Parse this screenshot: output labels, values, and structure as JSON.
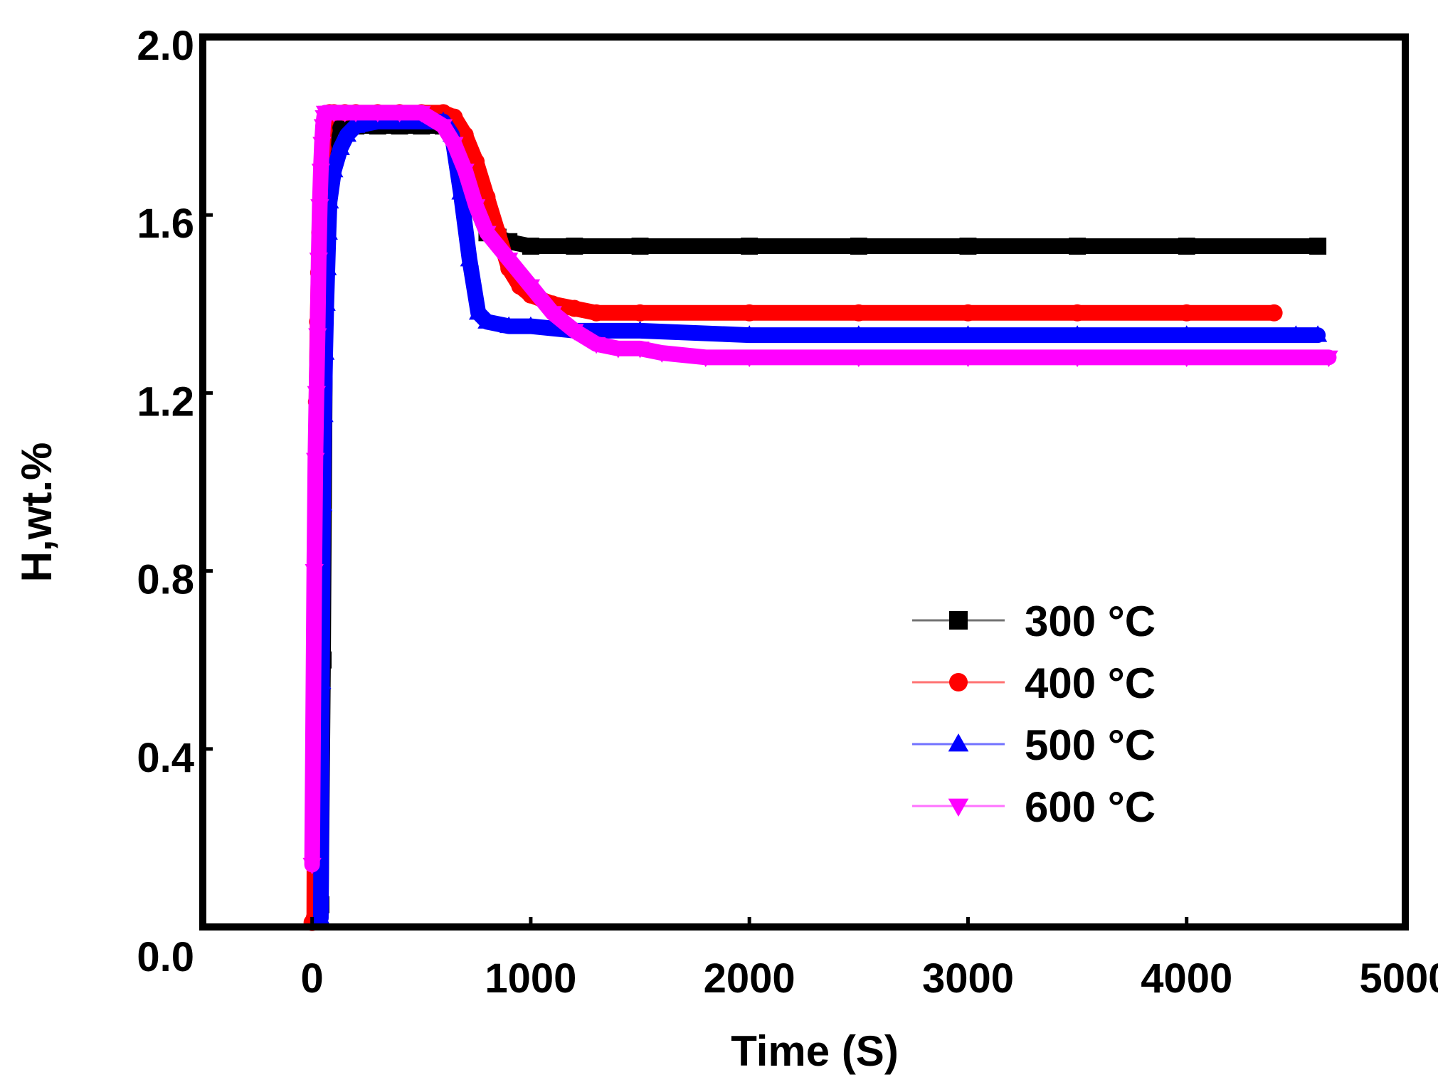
{
  "chart_data": {
    "type": "scatter",
    "title": "",
    "xlabel": "Time (S)",
    "ylabel": "H,wt.%",
    "xlim": [
      -500,
      5000
    ],
    "ylim": [
      0.0,
      2.0
    ],
    "xticks": [
      0,
      1000,
      2000,
      3000,
      4000,
      5000
    ],
    "xtick_labels": [
      "0",
      "1000",
      "2000",
      "3000",
      "4000",
      "5000"
    ],
    "yticks": [
      0.0,
      0.4,
      0.8,
      1.2,
      1.6,
      2.0
    ],
    "ytick_labels": [
      "0.0",
      "0.4",
      "0.8",
      "1.2",
      "1.6",
      "2.0"
    ],
    "grid": false,
    "legend_position": "center-right",
    "series": [
      {
        "name": "300 °C",
        "color": "#000000",
        "marker": "square",
        "x": [
          20,
          30,
          40,
          50,
          60,
          70,
          80,
          100,
          150,
          200,
          300,
          400,
          500,
          600,
          650,
          700,
          750,
          800,
          850,
          900,
          1000,
          1200,
          1500,
          2000,
          2500,
          3000,
          3500,
          4000,
          4600
        ],
        "y": [
          0.02,
          0.03,
          0.05,
          0.6,
          1.4,
          1.7,
          1.78,
          1.8,
          1.8,
          1.8,
          1.8,
          1.8,
          1.8,
          1.8,
          1.79,
          1.72,
          1.62,
          1.56,
          1.55,
          1.54,
          1.53,
          1.53,
          1.53,
          1.53,
          1.53,
          1.53,
          1.53,
          1.53,
          1.53
        ]
      },
      {
        "name": "400 °C",
        "color": "#ff0000",
        "marker": "circle",
        "x": [
          0,
          10,
          15,
          20,
          25,
          30,
          35,
          40,
          45,
          50,
          55,
          60,
          70,
          80,
          100,
          150,
          200,
          300,
          400,
          500,
          600,
          650,
          700,
          750,
          800,
          850,
          900,
          950,
          1000,
          1100,
          1200,
          1300,
          1500,
          2000,
          2500,
          3000,
          3500,
          4000,
          4400
        ],
        "y": [
          0.01,
          0.02,
          0.85,
          1.18,
          1.36,
          1.47,
          1.56,
          1.62,
          1.69,
          1.75,
          1.79,
          1.81,
          1.82,
          1.83,
          1.83,
          1.83,
          1.83,
          1.83,
          1.83,
          1.83,
          1.83,
          1.82,
          1.78,
          1.72,
          1.64,
          1.56,
          1.48,
          1.44,
          1.42,
          1.4,
          1.39,
          1.38,
          1.38,
          1.38,
          1.38,
          1.38,
          1.38,
          1.38,
          1.38
        ]
      },
      {
        "name": "500 °C",
        "color": "#0000ff",
        "marker": "triangle-up",
        "x": [
          40,
          45,
          50,
          55,
          60,
          65,
          70,
          75,
          80,
          100,
          130,
          160,
          200,
          300,
          400,
          500,
          600,
          640,
          680,
          720,
          760,
          800,
          900,
          1000,
          1200,
          1500,
          2000,
          2500,
          3000,
          3500,
          4000,
          4500,
          4600
        ],
        "y": [
          0.02,
          0.55,
          0.95,
          1.15,
          1.29,
          1.4,
          1.48,
          1.56,
          1.63,
          1.7,
          1.75,
          1.78,
          1.8,
          1.81,
          1.81,
          1.81,
          1.81,
          1.78,
          1.65,
          1.5,
          1.38,
          1.36,
          1.35,
          1.35,
          1.34,
          1.34,
          1.33,
          1.33,
          1.33,
          1.33,
          1.33,
          1.33,
          1.33
        ]
      },
      {
        "name": "600 °C",
        "color": "#ff00ff",
        "marker": "triangle-down",
        "x": [
          0,
          10,
          15,
          20,
          25,
          30,
          35,
          40,
          45,
          50,
          55,
          60,
          70,
          80,
          100,
          150,
          200,
          300,
          400,
          500,
          600,
          650,
          700,
          750,
          800,
          900,
          1000,
          1100,
          1200,
          1300,
          1400,
          1500,
          1600,
          1800,
          2000,
          2500,
          3000,
          3500,
          4000,
          4650
        ],
        "y": [
          0.14,
          0.8,
          1.05,
          1.2,
          1.33,
          1.5,
          1.62,
          1.7,
          1.76,
          1.8,
          1.82,
          1.83,
          1.83,
          1.83,
          1.83,
          1.83,
          1.83,
          1.83,
          1.83,
          1.83,
          1.8,
          1.76,
          1.7,
          1.62,
          1.56,
          1.5,
          1.44,
          1.38,
          1.34,
          1.31,
          1.3,
          1.3,
          1.29,
          1.28,
          1.28,
          1.28,
          1.28,
          1.28,
          1.28,
          1.28
        ]
      }
    ]
  }
}
